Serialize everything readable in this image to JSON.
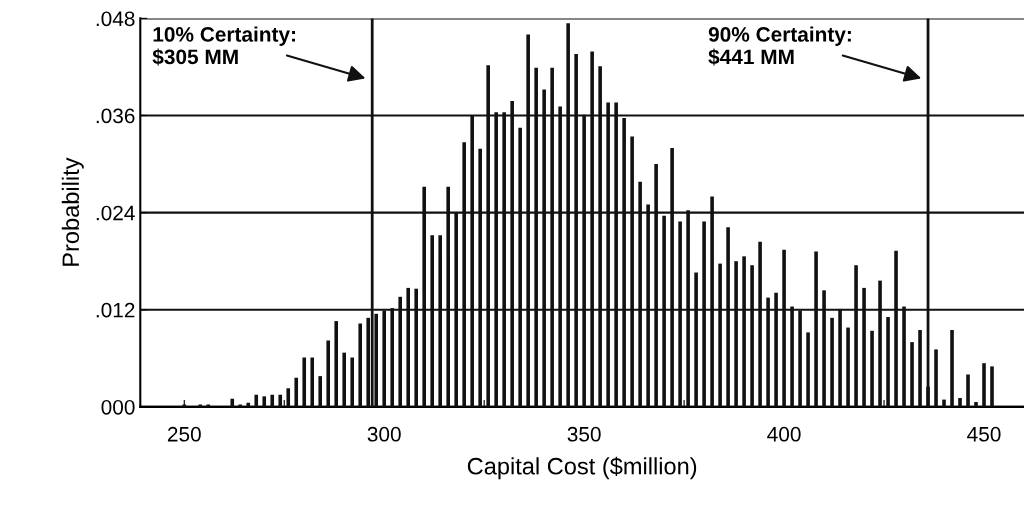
{
  "chart_data": {
    "type": "histogram",
    "xlabel": "Capital Cost ($million)",
    "ylabel": "Probability",
    "bins": [
      249,
      251,
      253,
      255,
      257,
      259,
      261,
      263,
      265,
      267,
      269,
      271,
      273,
      275,
      277,
      279,
      281,
      283,
      285,
      287,
      289,
      291,
      293,
      295,
      297,
      299,
      301,
      303,
      305,
      307,
      309,
      311,
      313,
      315,
      317,
      319,
      321,
      323,
      325,
      327,
      329,
      331,
      333,
      335,
      337,
      339,
      341,
      343,
      345,
      347,
      349,
      351,
      353,
      355,
      357,
      359,
      361,
      363,
      365,
      367,
      369,
      371,
      373,
      375,
      377,
      379,
      381,
      383,
      385,
      387,
      389,
      391,
      393,
      395,
      397,
      399,
      401,
      403,
      405,
      407,
      409,
      411,
      413,
      415,
      417,
      419,
      421,
      423,
      425,
      427,
      429,
      431,
      433,
      435,
      437,
      439,
      441,
      443,
      445,
      447,
      449,
      451,
      453
    ],
    "values": [
      0.0003,
      0.0,
      0.0003,
      0.0003,
      0.0,
      0.0,
      0.001,
      0.0003,
      0.0005,
      0.0015,
      0.0013,
      0.0015,
      0.0015,
      0.0023,
      0.0036,
      0.0061,
      0.0061,
      0.0038,
      0.0082,
      0.0106,
      0.0067,
      0.0061,
      0.0103,
      0.011,
      0.0115,
      0.0119,
      0.0122,
      0.0136,
      0.0147,
      0.0146,
      0.0272,
      0.0212,
      0.0212,
      0.0272,
      0.024,
      0.0327,
      0.036,
      0.0319,
      0.0422,
      0.0364,
      0.0364,
      0.0378,
      0.0345,
      0.046,
      0.0419,
      0.0392,
      0.0419,
      0.0371,
      0.0474,
      0.0436,
      0.0361,
      0.0439,
      0.0421,
      0.0376,
      0.0376,
      0.0357,
      0.0334,
      0.0278,
      0.025,
      0.03,
      0.0236,
      0.032,
      0.0229,
      0.0243,
      0.0166,
      0.0229,
      0.026,
      0.0177,
      0.0222,
      0.018,
      0.0186,
      0.0175,
      0.0204,
      0.0135,
      0.0141,
      0.0194,
      0.0124,
      0.0119,
      0.0092,
      0.0192,
      0.0144,
      0.011,
      0.0121,
      0.0098,
      0.0175,
      0.0147,
      0.0094,
      0.0156,
      0.0111,
      0.0193,
      0.0124,
      0.008,
      0.0095,
      0.0025,
      0.0071,
      0.0009,
      0.0095,
      0.0011,
      0.004,
      0.0006,
      0.0054,
      0.005
    ],
    "color": "#111111",
    "xlim": [
      239,
      460
    ],
    "xticks": [
      250,
      {
        "value": 275,
        "label": null
      },
      300,
      {
        "value": 325,
        "label": null
      },
      350,
      {
        "value": 375,
        "label": null
      },
      400,
      {
        "value": 425,
        "label": null
      },
      450
    ],
    "ylim": [
      0,
      0.048
    ],
    "yticks": [
      {
        "value": 0,
        "label": "000"
      },
      {
        "value": 0.012,
        "label": ".012"
      },
      {
        "value": 0.024,
        "label": ".024"
      },
      {
        "value": 0.036,
        "label": ".036"
      },
      {
        "value": 0.048,
        "label": ".048"
      }
    ],
    "grid": "y",
    "legend": false,
    "ref_lines": [
      {
        "axis": "x",
        "value": 297,
        "color": "#111111"
      },
      {
        "axis": "x",
        "value": 436,
        "color": "#111111"
      }
    ],
    "annotations": [
      "10% Certainty:\n$305 MM",
      "90% Certainty:\n$441 MM"
    ]
  }
}
